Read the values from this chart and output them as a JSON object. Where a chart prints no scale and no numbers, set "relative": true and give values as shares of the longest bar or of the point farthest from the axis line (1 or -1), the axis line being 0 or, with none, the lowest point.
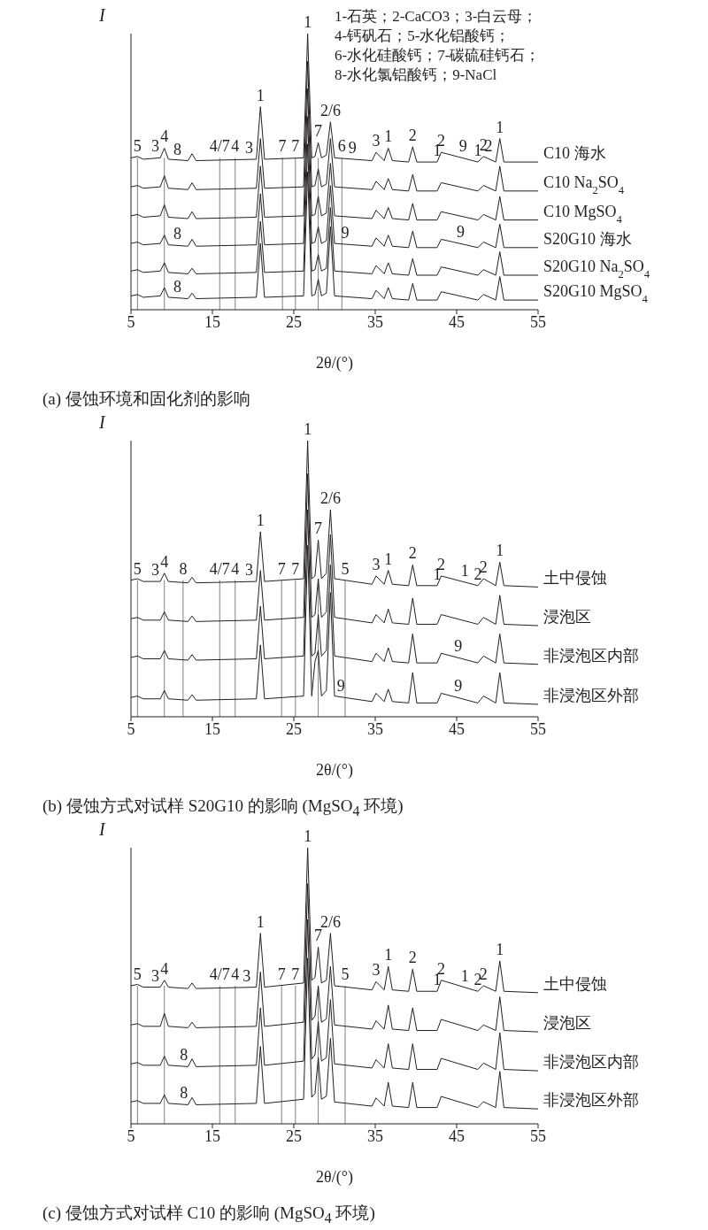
{
  "chart_data": [
    {
      "type": "line",
      "relative": true,
      "title": "(a) 侵蚀环境和固化剂的影响",
      "xlabel": "2θ/(°)",
      "ylabel": "I",
      "xlim": [
        5,
        55
      ],
      "xticks": [
        5,
        15,
        25,
        35,
        45,
        55
      ],
      "legend": false,
      "grid": false,
      "marker": "none",
      "line_style": "solid",
      "x": [
        5,
        5.8,
        6.5,
        8.6,
        9.1,
        9.6,
        12,
        12.5,
        13,
        20.4,
        20.9,
        21.4,
        26.2,
        26.7,
        27.2,
        27.6,
        28,
        28.4,
        29,
        29.5,
        30,
        34.6,
        35.1,
        36.1,
        36.6,
        37.1,
        39.1,
        39.6,
        40.1,
        42.6,
        43.1,
        47.6,
        48.3,
        49.8,
        50.3,
        50.8,
        55
      ],
      "series": [
        {
          "name": "C10 海水",
          "color": "#231f20",
          "values": [
            0.55,
            0.555,
            0.545,
            0.55,
            0.585,
            0.545,
            0.54,
            0.565,
            0.54,
            0.545,
            0.735,
            0.545,
            0.55,
            1,
            0.55,
            0.555,
            0.605,
            0.55,
            0.56,
            0.68,
            0.55,
            0.54,
            0.57,
            0.54,
            0.585,
            0.54,
            0.535,
            0.59,
            0.535,
            0.535,
            0.57,
            0.535,
            0.555,
            0.535,
            0.62,
            0.535,
            0.535
          ]
        },
        {
          "name": "C10 Na$_{2}$SO$_{4}$",
          "color": "#231f20",
          "values": [
            0.445,
            0.45,
            0.44,
            0.445,
            0.485,
            0.44,
            0.435,
            0.46,
            0.435,
            0.44,
            0.62,
            0.44,
            0.445,
            0.9,
            0.445,
            0.45,
            0.51,
            0.445,
            0.455,
            0.62,
            0.445,
            0.435,
            0.465,
            0.435,
            0.475,
            0.435,
            0.43,
            0.49,
            0.43,
            0.43,
            0.46,
            0.43,
            0.45,
            0.43,
            0.52,
            0.43,
            0.43
          ]
        },
        {
          "name": "C10 MgSO$_{4}$",
          "color": "#231f20",
          "values": [
            0.34,
            0.345,
            0.335,
            0.34,
            0.38,
            0.335,
            0.33,
            0.355,
            0.33,
            0.335,
            0.52,
            0.335,
            0.34,
            0.8,
            0.34,
            0.345,
            0.41,
            0.34,
            0.35,
            0.53,
            0.34,
            0.33,
            0.36,
            0.33,
            0.37,
            0.33,
            0.325,
            0.385,
            0.325,
            0.325,
            0.355,
            0.325,
            0.345,
            0.325,
            0.41,
            0.325,
            0.325
          ]
        },
        {
          "name": "S20G10 海水",
          "color": "#231f20",
          "values": [
            0.24,
            0.245,
            0.235,
            0.24,
            0.27,
            0.235,
            0.23,
            0.255,
            0.23,
            0.235,
            0.42,
            0.235,
            0.24,
            0.7,
            0.24,
            0.245,
            0.3,
            0.24,
            0.25,
            0.45,
            0.24,
            0.23,
            0.26,
            0.23,
            0.27,
            0.23,
            0.225,
            0.285,
            0.225,
            0.225,
            0.255,
            0.225,
            0.245,
            0.225,
            0.31,
            0.225,
            0.225
          ]
        },
        {
          "name": "S20G10 Na$_{2}$SO$_{4}$",
          "color": "#231f20",
          "values": [
            0.14,
            0.145,
            0.135,
            0.14,
            0.17,
            0.135,
            0.13,
            0.15,
            0.13,
            0.135,
            0.32,
            0.135,
            0.14,
            0.6,
            0.14,
            0.145,
            0.2,
            0.14,
            0.15,
            0.37,
            0.14,
            0.13,
            0.16,
            0.13,
            0.17,
            0.13,
            0.125,
            0.185,
            0.125,
            0.125,
            0.155,
            0.125,
            0.145,
            0.125,
            0.21,
            0.125,
            0.125
          ]
        },
        {
          "name": "S20G10 MgSO$_{4}$",
          "color": "#231f20",
          "values": [
            0.05,
            0.055,
            0.045,
            0.05,
            0.08,
            0.045,
            0.04,
            0.06,
            0.04,
            0.045,
            0.24,
            0.045,
            0.05,
            0.5,
            0.05,
            0.055,
            0.11,
            0.05,
            0.06,
            0.3,
            0.05,
            0.04,
            0.07,
            0.04,
            0.08,
            0.04,
            0.035,
            0.095,
            0.035,
            0.035,
            0.065,
            0.035,
            0.055,
            0.035,
            0.12,
            0.035,
            0.035
          ]
        }
      ],
      "ref_lines": [
        {
          "axis": "x",
          "value": 5.8,
          "color": "#808080"
        },
        {
          "axis": "x",
          "value": 9.1,
          "color": "#808080"
        },
        {
          "axis": "x",
          "value": 15.9,
          "color": "#808080"
        },
        {
          "axis": "x",
          "value": 17.8,
          "color": "#808080"
        },
        {
          "axis": "x",
          "value": 23.6,
          "color": "#808080"
        },
        {
          "axis": "x",
          "value": 25.2,
          "color": "#808080"
        },
        {
          "axis": "x",
          "value": 28,
          "color": "#808080"
        },
        {
          "axis": "x",
          "value": 30.9,
          "color": "#808080"
        }
      ],
      "annotations": [
        "1-石英；2-CaCO3；3-白云母；",
        "4-钙矾石；5-水化铝酸钙；",
        "6-水化硅酸钙；7-碳硫硅钙石；",
        "8-水化氯铝酸钙；9-NaCl",
        {
          "text": "5",
          "x": 5.8,
          "y": 0.55
        },
        {
          "text": "4",
          "x": 9.1,
          "y": 0.585
        },
        {
          "text": "4/7",
          "x": 15.9,
          "y": 0.55
        },
        {
          "text": "4",
          "x": 17.8,
          "y": 0.55
        },
        {
          "text": "7",
          "x": 23.6,
          "y": 0.55
        },
        {
          "text": "7",
          "x": 25.2,
          "y": 0.55
        },
        {
          "text": "7",
          "x": 28,
          "y": 0.605
        },
        {
          "text": "6",
          "x": 30.9,
          "y": 0.55
        },
        {
          "text": "3",
          "x": 8,
          "y": 0.55
        },
        {
          "text": "8",
          "x": 10.7,
          "y": 0.54
        },
        {
          "text": "3",
          "x": 19.5,
          "y": 0.545
        },
        {
          "text": "1",
          "x": 20.9,
          "y": 0.735
        },
        {
          "text": "1",
          "x": 26.7,
          "y": 1
        },
        {
          "text": "2/6",
          "x": 29.5,
          "y": 0.68
        },
        {
          "text": "9",
          "x": 32.2,
          "y": 0.545
        },
        {
          "text": "3",
          "x": 35.1,
          "y": 0.57
        },
        {
          "text": "1",
          "x": 36.6,
          "y": 0.585
        },
        {
          "text": "2",
          "x": 39.6,
          "y": 0.59
        },
        {
          "text": "1",
          "x": 42.6,
          "y": 0.535
        },
        {
          "text": "2",
          "x": 43.1,
          "y": 0.57
        },
        {
          "text": "9",
          "x": 45.8,
          "y": 0.55
        },
        {
          "text": "1",
          "x": 47.6,
          "y": 0.535
        },
        {
          "text": "2",
          "x": 48.3,
          "y": 0.555
        },
        {
          "text": "2",
          "x": 48.9,
          "y": 0.55
        },
        {
          "text": "1",
          "x": 50.3,
          "y": 0.62
        },
        {
          "text": "8",
          "x": 10.7,
          "y": 0.233
        },
        {
          "text": "9",
          "x": 31.3,
          "y": 0.237
        },
        {
          "text": "9",
          "x": 45.5,
          "y": 0.239
        },
        {
          "text": "8",
          "x": 10.7,
          "y": 0.043
        }
      ]
    },
    {
      "type": "line",
      "relative": true,
      "title": "(b) 侵蚀方式对试样 S20G10 的影响 (MgSO$_{4}$ 环境)",
      "xlabel": "2θ/(°)",
      "ylabel": "I",
      "xlim": [
        5,
        55
      ],
      "xticks": [
        5,
        15,
        25,
        35,
        45,
        55
      ],
      "legend": false,
      "grid": false,
      "marker": "none",
      "line_style": "solid",
      "x": [
        5,
        5.8,
        6.5,
        8.6,
        9.1,
        9.6,
        12,
        12.5,
        13,
        20.4,
        20.9,
        21.4,
        26.2,
        26.7,
        27.2,
        27.6,
        28,
        28.4,
        29,
        29.5,
        30,
        34.6,
        35.1,
        36.1,
        36.6,
        37.1,
        39.1,
        39.6,
        40.1,
        42.6,
        43.1,
        47.6,
        48.3,
        49.8,
        50.3,
        50.8,
        55
      ],
      "series": [
        {
          "name": "土中侵蚀",
          "color": "#231f20",
          "values": [
            0.495,
            0.5,
            0.49,
            0.49,
            0.52,
            0.49,
            0.485,
            0.505,
            0.485,
            0.49,
            0.67,
            0.49,
            0.5,
            1,
            0.5,
            0.51,
            0.64,
            0.5,
            0.52,
            0.75,
            0.5,
            0.48,
            0.51,
            0.48,
            0.53,
            0.48,
            0.475,
            0.55,
            0.475,
            0.475,
            0.51,
            0.475,
            0.5,
            0.475,
            0.56,
            0.475,
            0.47
          ]
        },
        {
          "name": "浸泡区",
          "color": "#231f20",
          "values": [
            0.355,
            0.36,
            0.35,
            0.35,
            0.38,
            0.35,
            0.345,
            0.365,
            0.345,
            0.35,
            0.53,
            0.35,
            0.36,
            0.88,
            0.36,
            0.37,
            0.5,
            0.36,
            0.38,
            0.66,
            0.36,
            0.34,
            0.37,
            0.34,
            0.39,
            0.34,
            0.335,
            0.43,
            0.335,
            0.335,
            0.37,
            0.335,
            0.36,
            0.335,
            0.44,
            0.335,
            0.33
          ]
        },
        {
          "name": "非浸泡区内部",
          "color": "#231f20",
          "values": [
            0.215,
            0.22,
            0.21,
            0.21,
            0.24,
            0.21,
            0.205,
            0.225,
            0.205,
            0.21,
            0.4,
            0.21,
            0.22,
            0.75,
            0.22,
            0.23,
            0.37,
            0.22,
            0.24,
            0.55,
            0.22,
            0.2,
            0.23,
            0.2,
            0.25,
            0.2,
            0.195,
            0.3,
            0.195,
            0.195,
            0.23,
            0.195,
            0.22,
            0.195,
            0.3,
            0.195,
            0.19
          ]
        },
        {
          "name": "非浸泡区外部",
          "color": "#231f20",
          "values": [
            0.07,
            0.075,
            0.065,
            0.065,
            0.095,
            0.065,
            0.06,
            0.08,
            0.06,
            0.065,
            0.26,
            0.065,
            0.075,
            0.62,
            0.075,
            0.2,
            0.24,
            0.075,
            0.095,
            0.45,
            0.075,
            0.055,
            0.085,
            0.055,
            0.1,
            0.055,
            0.05,
            0.16,
            0.05,
            0.05,
            0.085,
            0.05,
            0.075,
            0.05,
            0.16,
            0.05,
            0.045
          ]
        }
      ],
      "ref_lines": [
        {
          "axis": "x",
          "value": 5.8,
          "color": "#808080"
        },
        {
          "axis": "x",
          "value": 9.1,
          "color": "#808080"
        },
        {
          "axis": "x",
          "value": 11.4,
          "color": "#808080"
        },
        {
          "axis": "x",
          "value": 15.9,
          "color": "#808080"
        },
        {
          "axis": "x",
          "value": 17.8,
          "color": "#808080"
        },
        {
          "axis": "x",
          "value": 23.5,
          "color": "#808080"
        },
        {
          "axis": "x",
          "value": 25.2,
          "color": "#808080"
        },
        {
          "axis": "x",
          "value": 28,
          "color": "#808080"
        },
        {
          "axis": "x",
          "value": 31.3,
          "color": "#808080"
        }
      ],
      "annotations": [
        {
          "text": "5",
          "x": 5.8,
          "y": 0.495
        },
        {
          "text": "4",
          "x": 9.1,
          "y": 0.52
        },
        {
          "text": "8",
          "x": 11.4,
          "y": 0.495
        },
        {
          "text": "4/7",
          "x": 15.9,
          "y": 0.495
        },
        {
          "text": "4",
          "x": 17.8,
          "y": 0.495
        },
        {
          "text": "7",
          "x": 23.5,
          "y": 0.495
        },
        {
          "text": "7",
          "x": 25.2,
          "y": 0.495
        },
        {
          "text": "7",
          "x": 28,
          "y": 0.64
        },
        {
          "text": "5",
          "x": 31.3,
          "y": 0.495
        },
        {
          "text": "3",
          "x": 8,
          "y": 0.49
        },
        {
          "text": "3",
          "x": 19.5,
          "y": 0.489
        },
        {
          "text": "1",
          "x": 20.9,
          "y": 0.67
        },
        {
          "text": "1",
          "x": 26.7,
          "y": 1
        },
        {
          "text": "2/6",
          "x": 29.5,
          "y": 0.75
        },
        {
          "text": "3",
          "x": 35.1,
          "y": 0.51
        },
        {
          "text": "1",
          "x": 36.6,
          "y": 0.53
        },
        {
          "text": "2",
          "x": 39.6,
          "y": 0.55
        },
        {
          "text": "1",
          "x": 42.6,
          "y": 0.475
        },
        {
          "text": "2",
          "x": 43.1,
          "y": 0.51
        },
        {
          "text": "1",
          "x": 46,
          "y": 0.487
        },
        {
          "text": "2",
          "x": 47.6,
          "y": 0.475
        },
        {
          "text": "2",
          "x": 48.3,
          "y": 0.5
        },
        {
          "text": "1",
          "x": 50.3,
          "y": 0.56
        },
        {
          "text": "9",
          "x": 45.2,
          "y": 0.214
        },
        {
          "text": "9",
          "x": 30.8,
          "y": 0.072
        },
        {
          "text": "9",
          "x": 45.2,
          "y": 0.069
        }
      ]
    },
    {
      "type": "line",
      "relative": true,
      "title": "(c) 侵蚀方式对试样 C10 的影响 (MgSO$_{4}$ 环境)",
      "xlabel": "2θ/(°)",
      "ylabel": "I",
      "xlim": [
        5,
        55
      ],
      "xticks": [
        5,
        15,
        25,
        35,
        45,
        55
      ],
      "legend": false,
      "grid": false,
      "marker": "none",
      "line_style": "solid",
      "x": [
        5,
        5.8,
        6.5,
        8.6,
        9.1,
        9.6,
        12,
        12.5,
        13,
        20.4,
        20.9,
        21.4,
        26.2,
        26.7,
        27.2,
        27.6,
        28,
        28.4,
        29,
        29.5,
        30,
        34.6,
        35.1,
        36.1,
        36.6,
        37.1,
        39.1,
        39.6,
        40.1,
        42.6,
        43.1,
        47.6,
        48.3,
        49.8,
        50.3,
        50.8,
        55
      ],
      "series": [
        {
          "name": "土中侵蚀",
          "color": "#231f20",
          "values": [
            0.5,
            0.505,
            0.495,
            0.495,
            0.52,
            0.495,
            0.49,
            0.51,
            0.49,
            0.495,
            0.69,
            0.495,
            0.51,
            1,
            0.52,
            0.53,
            0.64,
            0.51,
            0.52,
            0.69,
            0.5,
            0.485,
            0.515,
            0.485,
            0.57,
            0.485,
            0.48,
            0.56,
            0.48,
            0.48,
            0.52,
            0.48,
            0.5,
            0.48,
            0.59,
            0.48,
            0.475
          ]
        },
        {
          "name": "浸泡区",
          "color": "#231f20",
          "values": [
            0.358,
            0.363,
            0.353,
            0.353,
            0.4,
            0.353,
            0.348,
            0.368,
            0.348,
            0.353,
            0.55,
            0.353,
            0.368,
            0.87,
            0.375,
            0.39,
            0.5,
            0.368,
            0.38,
            0.57,
            0.358,
            0.343,
            0.373,
            0.343,
            0.43,
            0.343,
            0.338,
            0.42,
            0.338,
            0.338,
            0.378,
            0.338,
            0.358,
            0.338,
            0.46,
            0.338,
            0.333
          ]
        },
        {
          "name": "非浸泡区内部",
          "color": "#231f20",
          "values": [
            0.217,
            0.222,
            0.212,
            0.212,
            0.245,
            0.212,
            0.207,
            0.235,
            0.207,
            0.212,
            0.42,
            0.212,
            0.227,
            0.74,
            0.234,
            0.25,
            0.37,
            0.227,
            0.24,
            0.45,
            0.217,
            0.202,
            0.232,
            0.202,
            0.29,
            0.202,
            0.197,
            0.29,
            0.197,
            0.197,
            0.237,
            0.197,
            0.22,
            0.197,
            0.33,
            0.197,
            0.192
          ]
        },
        {
          "name": "非浸泡区外部",
          "color": "#231f20",
          "values": [
            0.079,
            0.084,
            0.074,
            0.074,
            0.105,
            0.074,
            0.069,
            0.095,
            0.069,
            0.074,
            0.28,
            0.074,
            0.089,
            0.6,
            0.096,
            0.11,
            0.24,
            0.089,
            0.1,
            0.31,
            0.079,
            0.064,
            0.094,
            0.064,
            0.15,
            0.064,
            0.059,
            0.15,
            0.059,
            0.059,
            0.099,
            0.059,
            0.08,
            0.059,
            0.19,
            0.059,
            0.054
          ]
        }
      ],
      "ref_lines": [
        {
          "axis": "x",
          "value": 5.8,
          "color": "#808080"
        },
        {
          "axis": "x",
          "value": 9.1,
          "color": "#808080"
        },
        {
          "axis": "x",
          "value": 15.9,
          "color": "#808080"
        },
        {
          "axis": "x",
          "value": 17.8,
          "color": "#808080"
        },
        {
          "axis": "x",
          "value": 23.5,
          "color": "#808080"
        },
        {
          "axis": "x",
          "value": 25.2,
          "color": "#808080"
        },
        {
          "axis": "x",
          "value": 28,
          "color": "#808080"
        },
        {
          "axis": "x",
          "value": 31.3,
          "color": "#808080"
        }
      ],
      "annotations": [
        {
          "text": "5",
          "x": 5.8,
          "y": 0.5
        },
        {
          "text": "4",
          "x": 9.1,
          "y": 0.52
        },
        {
          "text": "4/7",
          "x": 15.9,
          "y": 0.5
        },
        {
          "text": "4",
          "x": 17.8,
          "y": 0.5
        },
        {
          "text": "7",
          "x": 23.5,
          "y": 0.5
        },
        {
          "text": "7",
          "x": 25.2,
          "y": 0.5
        },
        {
          "text": "7",
          "x": 28,
          "y": 0.64
        },
        {
          "text": "5",
          "x": 31.3,
          "y": 0.5
        },
        {
          "text": "3",
          "x": 8,
          "y": 0.495
        },
        {
          "text": "3",
          "x": 19.2,
          "y": 0.494
        },
        {
          "text": "1",
          "x": 20.9,
          "y": 0.69
        },
        {
          "text": "1",
          "x": 26.7,
          "y": 1
        },
        {
          "text": "2/6",
          "x": 29.5,
          "y": 0.69
        },
        {
          "text": "3",
          "x": 35.1,
          "y": 0.515
        },
        {
          "text": "1",
          "x": 36.6,
          "y": 0.57
        },
        {
          "text": "2",
          "x": 39.6,
          "y": 0.56
        },
        {
          "text": "1",
          "x": 42.6,
          "y": 0.48
        },
        {
          "text": "2",
          "x": 43.1,
          "y": 0.52
        },
        {
          "text": "1",
          "x": 46,
          "y": 0.494
        },
        {
          "text": "2",
          "x": 47.6,
          "y": 0.48
        },
        {
          "text": "2",
          "x": 48.3,
          "y": 0.5
        },
        {
          "text": "1",
          "x": 50.3,
          "y": 0.59
        },
        {
          "text": "8",
          "x": 11.5,
          "y": 0.208
        },
        {
          "text": "8",
          "x": 11.5,
          "y": 0.07
        }
      ]
    }
  ]
}
